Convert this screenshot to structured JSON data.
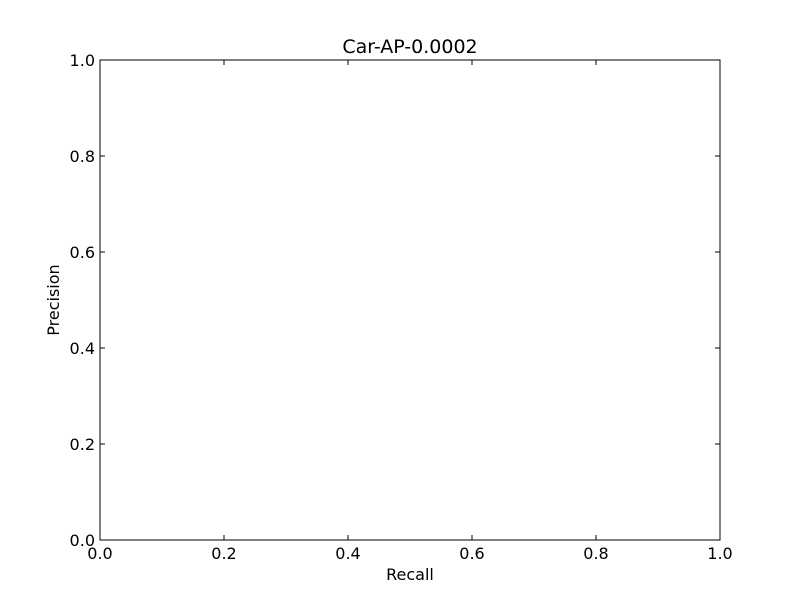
{
  "chart_data": {
    "type": "line",
    "title": "Car-AP-0.0002",
    "xlabel": "Recall",
    "ylabel": "Precision",
    "xlim": [
      0.0,
      1.0
    ],
    "ylim": [
      0.0,
      1.0
    ],
    "x_ticks": [
      0.0,
      0.2,
      0.4,
      0.6,
      0.8,
      1.0
    ],
    "y_ticks": [
      0.0,
      0.2,
      0.4,
      0.6,
      0.8,
      1.0
    ],
    "x_tick_labels": [
      "0.0",
      "0.2",
      "0.4",
      "0.6",
      "0.8",
      "1.0"
    ],
    "y_tick_labels": [
      "0.0",
      "0.2",
      "0.4",
      "0.6",
      "0.8",
      "1.0"
    ],
    "grid": false,
    "series": []
  }
}
